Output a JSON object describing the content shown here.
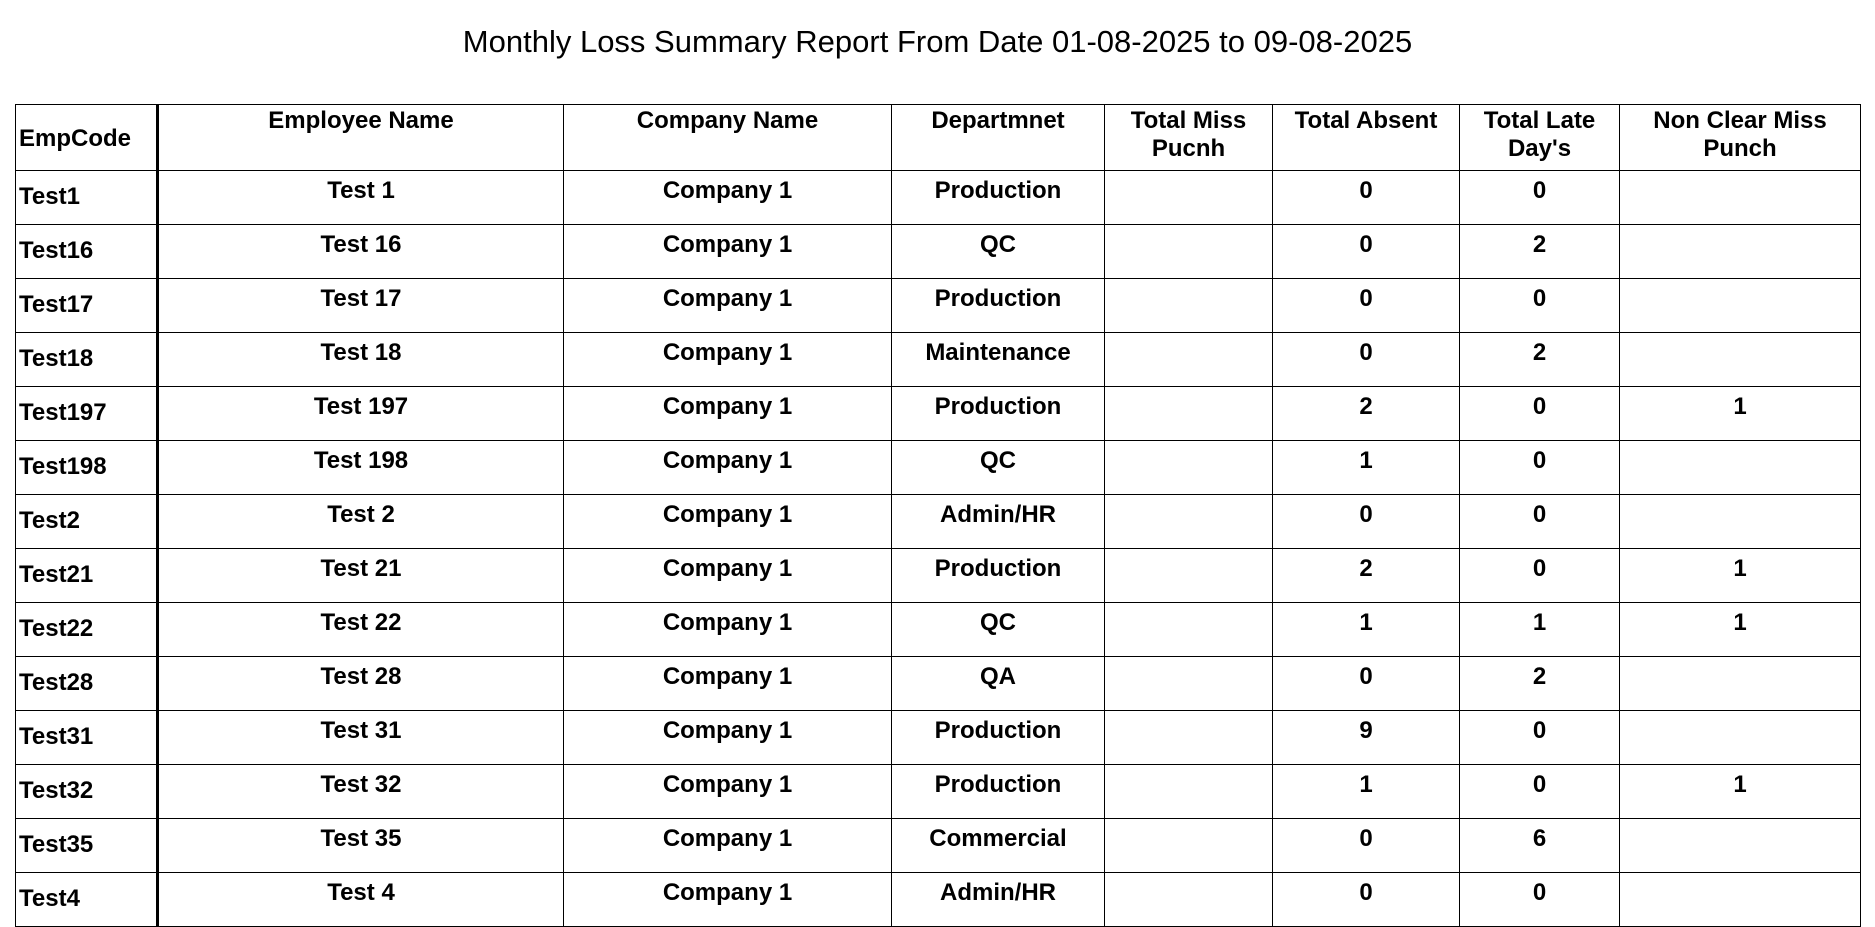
{
  "header": {
    "title": "Monthly Loss Summary Report From Date 01-08-2025 to 09-08-2025"
  },
  "table": {
    "columns": [
      "EmpCode",
      "Employee Name",
      "Company Name",
      "Departmnet",
      "Total Miss Pucnh",
      "Total Absent",
      "Total Late Day's",
      "Non Clear Miss Punch"
    ],
    "rows": [
      [
        "Test1",
        "Test 1",
        "Company 1",
        "Production",
        null,
        "0",
        "0",
        null
      ],
      [
        "Test16",
        "Test 16",
        "Company 1",
        "QC",
        null,
        "0",
        "2",
        null
      ],
      [
        "Test17",
        "Test 17",
        "Company 1",
        "Production",
        null,
        "0",
        "0",
        null
      ],
      [
        "Test18",
        "Test 18",
        "Company 1",
        "Maintenance",
        null,
        "0",
        "2",
        null
      ],
      [
        "Test197",
        "Test 197",
        "Company 1",
        "Production",
        null,
        "2",
        "0",
        "1"
      ],
      [
        "Test198",
        "Test 198",
        "Company 1",
        "QC",
        null,
        "1",
        "0",
        null
      ],
      [
        "Test2",
        "Test 2",
        "Company 1",
        "Admin/HR",
        null,
        "0",
        "0",
        null
      ],
      [
        "Test21",
        "Test 21",
        "Company 1",
        "Production",
        null,
        "2",
        "0",
        "1"
      ],
      [
        "Test22",
        "Test 22",
        "Company 1",
        "QC",
        null,
        "1",
        "1",
        "1"
      ],
      [
        "Test28",
        "Test 28",
        "Company 1",
        "QA",
        null,
        "0",
        "2",
        null
      ],
      [
        "Test31",
        "Test 31",
        "Company 1",
        "Production",
        null,
        "9",
        "0",
        null
      ],
      [
        "Test32",
        "Test 32",
        "Company 1",
        "Production",
        null,
        "1",
        "0",
        "1"
      ],
      [
        "Test35",
        "Test 35",
        "Company 1",
        "Commercial",
        null,
        "0",
        "6",
        null
      ],
      [
        "Test4",
        "Test 4",
        "Company 1",
        "Admin/HR",
        null,
        "0",
        "0",
        null
      ]
    ]
  }
}
